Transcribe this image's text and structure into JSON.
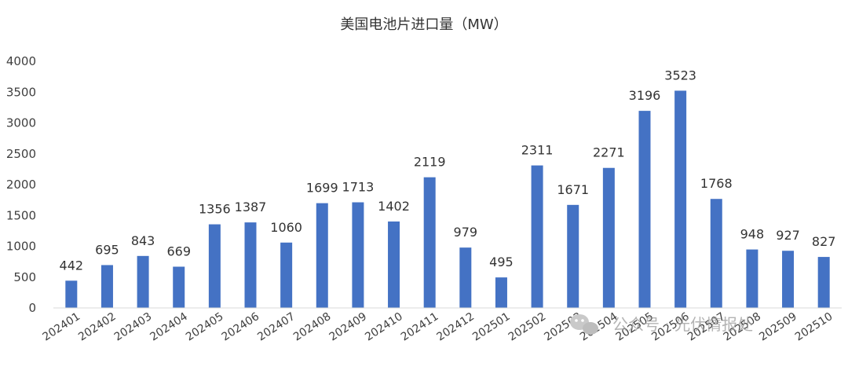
{
  "chart_data": {
    "type": "bar",
    "title": "美国电池片进口量（MW）",
    "categories": [
      "202401",
      "202402",
      "202403",
      "202404",
      "202405",
      "202406",
      "202407",
      "202408",
      "202409",
      "202410",
      "202411",
      "202412",
      "202501",
      "202502",
      "202503",
      "202504",
      "202505",
      "202506",
      "202507",
      "202508",
      "202509",
      "202510"
    ],
    "values": [
      442,
      695,
      843,
      669,
      1356,
      1387,
      1060,
      1699,
      1713,
      1402,
      2119,
      979,
      495,
      2311,
      1671,
      2271,
      3196,
      3523,
      1768,
      948,
      927,
      827
    ],
    "ylim": [
      0,
      4000
    ],
    "yticks": [
      0,
      500,
      1000,
      1500,
      2000,
      2500,
      3000,
      3500,
      4000
    ],
    "bar_color": "#4472C4",
    "grid": false,
    "data_labels": true
  },
  "watermark": {
    "text": "公众号 · 光伏情报处",
    "icon": "wechat-icon"
  }
}
